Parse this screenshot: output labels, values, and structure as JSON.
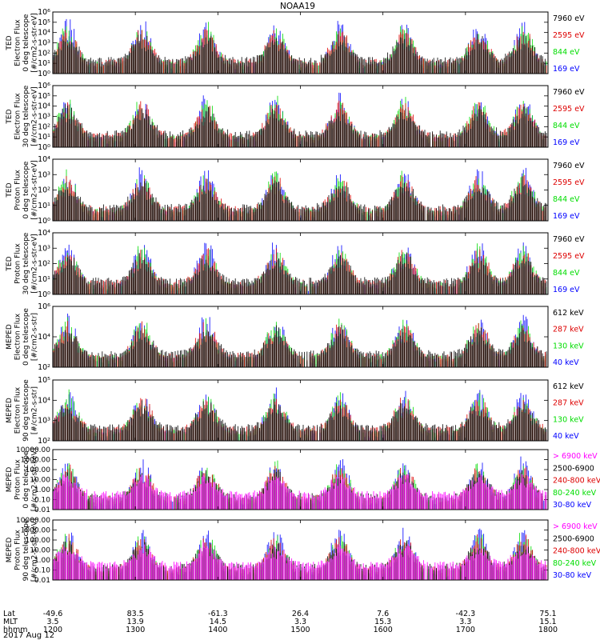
{
  "title": "NOAA19",
  "date_label": "2017 Aug 12",
  "colors": {
    "black": "#000000",
    "red": "#dd0000",
    "green": "#00dd00",
    "blue": "#0000ff",
    "magenta": "#ff00ff"
  },
  "axis_rows": {
    "labels": [
      "Lat",
      "MLT",
      "hhmm"
    ],
    "ticks": [
      {
        "lat": "-49.6",
        "mlt": "3.5",
        "hhmm": "1200"
      },
      {
        "lat": "83.5",
        "mlt": "13.9",
        "hhmm": "1300"
      },
      {
        "lat": "-61.3",
        "mlt": "14.5",
        "hhmm": "1400"
      },
      {
        "lat": "26.4",
        "mlt": "3.3",
        "hhmm": "1500"
      },
      {
        "lat": "7.6",
        "mlt": "15.3",
        "hhmm": "1600"
      },
      {
        "lat": "-42.3",
        "mlt": "3.3",
        "hhmm": "1700"
      },
      {
        "lat": "75.1",
        "mlt": "15.1",
        "hhmm": "1800"
      }
    ]
  },
  "chart_data": [
    {
      "type": "scatter",
      "ylabel": [
        "TED",
        "Electron Flux",
        "0 deg telescope",
        "[#/cm2-s-str-eV]"
      ],
      "log_y": true,
      "ylim": [
        1,
        1000000
      ],
      "yticks": [
        "10⁰",
        "10¹",
        "10²",
        "10³",
        "10⁴",
        "10⁵",
        "10⁶"
      ],
      "xlim": [
        "1200",
        "1800"
      ],
      "legend": [
        {
          "label": "7960 eV",
          "color": "#000000"
        },
        {
          "label": "2595 eV",
          "color": "#dd0000"
        },
        {
          "label": "844 eV",
          "color": "#00dd00"
        },
        {
          "label": "169 eV",
          "color": "#0000ff"
        }
      ]
    },
    {
      "type": "scatter",
      "ylabel": [
        "TED",
        "Electron Flux",
        "30 deg telescope",
        "[#/cm2-s-str-eV]"
      ],
      "log_y": true,
      "ylim": [
        1,
        1000000
      ],
      "yticks": [
        "10⁰",
        "10¹",
        "10²",
        "10³",
        "10⁴",
        "10⁵",
        "10⁶"
      ],
      "xlim": [
        "1200",
        "1800"
      ],
      "legend": [
        {
          "label": "7960 eV",
          "color": "#000000"
        },
        {
          "label": "2595 eV",
          "color": "#dd0000"
        },
        {
          "label": "844 eV",
          "color": "#00dd00"
        },
        {
          "label": "169 eV",
          "color": "#0000ff"
        }
      ]
    },
    {
      "type": "scatter",
      "ylabel": [
        "TED",
        "Proton Flux",
        "0 deg telescope",
        "[#/cm2-s-str-eV]"
      ],
      "log_y": true,
      "ylim": [
        1,
        10000
      ],
      "yticks": [
        "10⁰",
        "10¹",
        "10²",
        "10³",
        "10⁴"
      ],
      "xlim": [
        "1200",
        "1800"
      ],
      "legend": [
        {
          "label": "7960 eV",
          "color": "#000000"
        },
        {
          "label": "2595 eV",
          "color": "#dd0000"
        },
        {
          "label": "844 eV",
          "color": "#00dd00"
        },
        {
          "label": "169 eV",
          "color": "#0000ff"
        }
      ]
    },
    {
      "type": "scatter",
      "ylabel": [
        "TED",
        "Proton Flux",
        "30 deg telescope",
        "[#/cm2-s-str-eV]"
      ],
      "log_y": true,
      "ylim": [
        1,
        10000
      ],
      "yticks": [
        "10⁰",
        "10¹",
        "10²",
        "10³",
        "10⁴"
      ],
      "xlim": [
        "1200",
        "1800"
      ],
      "legend": [
        {
          "label": "7960 eV",
          "color": "#000000"
        },
        {
          "label": "2595 eV",
          "color": "#dd0000"
        },
        {
          "label": "844 eV",
          "color": "#00dd00"
        },
        {
          "label": "169 eV",
          "color": "#0000ff"
        }
      ]
    },
    {
      "type": "scatter",
      "ylabel": [
        "MEPED",
        "Electron Flux",
        "0 deg telescope",
        "[#/cm2-s-str]"
      ],
      "log_y": true,
      "ylim": [
        100,
        10000000
      ],
      "yticks": [
        "10²",
        "10⁴",
        "10⁶"
      ],
      "xlim": [
        "1200",
        "1800"
      ],
      "legend": [
        {
          "label": "612 keV",
          "color": "#000000"
        },
        {
          "label": "287 keV",
          "color": "#dd0000"
        },
        {
          "label": "130 keV",
          "color": "#00dd00"
        },
        {
          "label": "40 keV",
          "color": "#0000ff"
        }
      ]
    },
    {
      "type": "scatter",
      "ylabel": [
        "MEPED",
        "Electron Flux",
        "90 deg telescope",
        "[#/cm2-s-str]"
      ],
      "log_y": true,
      "ylim": [
        10,
        1000000
      ],
      "yticks": [
        "10²",
        "10³",
        "10⁴",
        "10⁵"
      ],
      "xlim": [
        "1200",
        "1800"
      ],
      "legend": [
        {
          "label": "612 keV",
          "color": "#000000"
        },
        {
          "label": "287 keV",
          "color": "#dd0000"
        },
        {
          "label": "130 keV",
          "color": "#00dd00"
        },
        {
          "label": "40 keV",
          "color": "#0000ff"
        }
      ]
    },
    {
      "type": "scatter",
      "ylabel": [
        "MEPED",
        "Proton Flux",
        "0 deg telescope",
        "[#/cm2-s-str-keV]"
      ],
      "log_y": true,
      "ylim": [
        0.01,
        10000
      ],
      "yticks": [
        "0.01",
        "0.10",
        "1.00",
        "10.00",
        "100.00",
        "1000.00",
        "10000.00"
      ],
      "xlim": [
        "1200",
        "1800"
      ],
      "legend": [
        {
          "label": "> 6900 keV",
          "color": "#ff00ff"
        },
        {
          "label": "2500-6900",
          "color": "#000000"
        },
        {
          "label": "240-800 keV",
          "color": "#dd0000"
        },
        {
          "label": "80-240 keV",
          "color": "#00dd00"
        },
        {
          "label": "30-80 keV",
          "color": "#0000ff"
        }
      ]
    },
    {
      "type": "scatter",
      "ylabel": [
        "MEPED",
        "Proton Flux",
        "90 deg telescope",
        "[#/cm2-s-str-keV]"
      ],
      "log_y": true,
      "ylim": [
        0.01,
        10000
      ],
      "yticks": [
        "0.01",
        "0.10",
        "1.00",
        "10.00",
        "100.00",
        "1000.00",
        "10000.00"
      ],
      "xlim": [
        "1200",
        "1800"
      ],
      "legend": [
        {
          "label": "> 6900 keV",
          "color": "#ff00ff"
        },
        {
          "label": "2500-6900",
          "color": "#000000"
        },
        {
          "label": "240-800 keV",
          "color": "#dd0000"
        },
        {
          "label": "80-240 keV",
          "color": "#00dd00"
        },
        {
          "label": "30-80 keV",
          "color": "#0000ff"
        }
      ]
    }
  ]
}
